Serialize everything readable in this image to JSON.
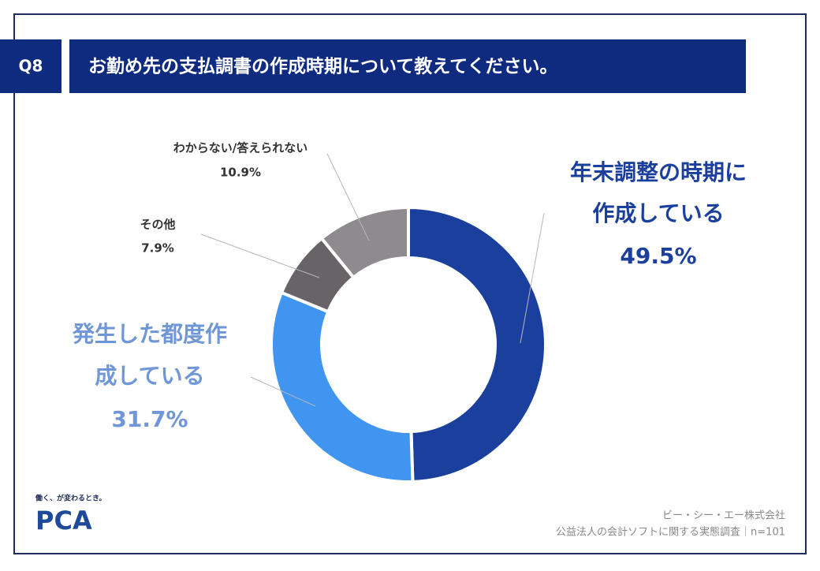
{
  "header": {
    "number": "Q8",
    "title": "お勤め先の支払調書の作成時期について教えてください。"
  },
  "chart_data": {
    "type": "donut",
    "categories": [
      [
        "年末調整の時期に",
        "作成している"
      ],
      [
        "発生した都度作",
        "成している"
      ],
      [
        "その他"
      ],
      [
        "わからない/答えられない"
      ]
    ],
    "values": [
      49.5,
      31.7,
      7.9,
      10.9
    ],
    "value_labels": [
      "49.5%",
      "31.7%",
      "7.9%",
      "10.9%"
    ],
    "colors": [
      "#1b3f9c",
      "#3f95f0",
      "#676367",
      "#8e8a8e"
    ],
    "label_colors": [
      "#1b3f9c",
      "#6f96d6",
      "#333333",
      "#333333"
    ]
  },
  "logo": {
    "tagline": "働く、が変わるとき。",
    "name": "PCA"
  },
  "footer": {
    "company": "ビー・シー・エー株式会社",
    "survey": "公益法人の会計ソフトに関する実態調査｜n=101"
  }
}
